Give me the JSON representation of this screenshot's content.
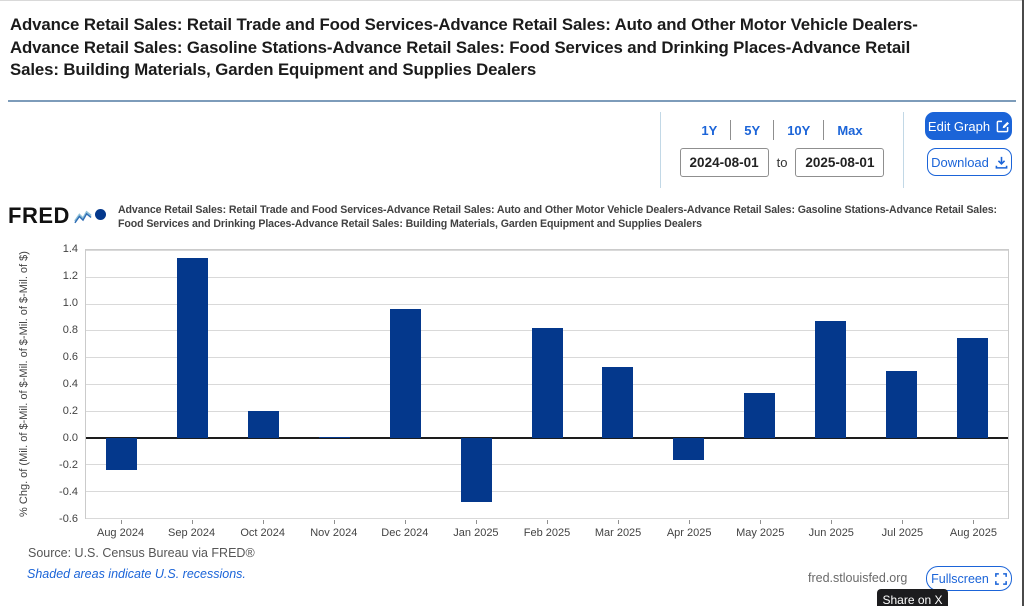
{
  "page": {
    "title": "Advance Retail Sales: Retail Trade and Food Services-Advance Retail Sales: Auto and Other Motor Vehicle Dealers-Advance Retail Sales: Gasoline Stations-Advance Retail Sales: Food Services and Drinking Places-Advance Retail Sales: Building Materials, Garden Equipment and Supplies Dealers",
    "logo_text": "FRED",
    "source_line": "Source: U.S. Census Bureau via FRED®",
    "recession_note": "Shaded areas indicate U.S. recessions.",
    "watermark": "fred.stlouisfed.org"
  },
  "controls": {
    "ranges": [
      "1Y",
      "5Y",
      "10Y",
      "Max"
    ],
    "date_start": "2024-08-01",
    "date_to_label": "to",
    "date_end": "2025-08-01",
    "edit_graph_label": "Edit Graph",
    "download_label": "Download",
    "fullscreen_label": "Fullscreen",
    "share_tooltip": "Share on X"
  },
  "colors": {
    "bar_navy": "#04388c",
    "accent_blue": "#1b64d8",
    "title_text": "#1b1b1b",
    "axis_text": "#434343",
    "gridline": "#d9d9d9",
    "tooltip_bg": "#1c1c1e"
  },
  "chart_data": {
    "type": "bar",
    "title": "",
    "legend_label": "Advance Retail Sales: Retail Trade and Food Services-Advance Retail Sales: Auto and Other Motor Vehicle Dealers-Advance Retail Sales: Gasoline Stations-Advance Retail Sales: Food Services and Drinking Places-Advance Retail Sales: Building Materials, Garden Equipment and Supplies Dealers",
    "categories": [
      "Aug 2024",
      "Sep 2024",
      "Oct 2024",
      "Nov 2024",
      "Dec 2024",
      "Jan 2025",
      "Feb 2025",
      "Mar 2025",
      "Apr 2025",
      "May 2025",
      "Jun 2025",
      "Jul 2025",
      "Aug 2025"
    ],
    "values": [
      -0.24,
      1.34,
      0.2,
      0.0,
      0.96,
      -0.48,
      0.82,
      0.53,
      -0.17,
      0.33,
      0.87,
      0.5,
      0.74
    ],
    "xlabel": "",
    "ylabel": "% Chg. of (Mil. of $-Mil. of $-Mil. of $-Mil. of $-Mil. of $)",
    "ylim": [
      -0.6,
      1.4
    ],
    "ytick_step": 0.2,
    "grid": true,
    "legend_position": "top",
    "bar_color": "#04388c"
  }
}
